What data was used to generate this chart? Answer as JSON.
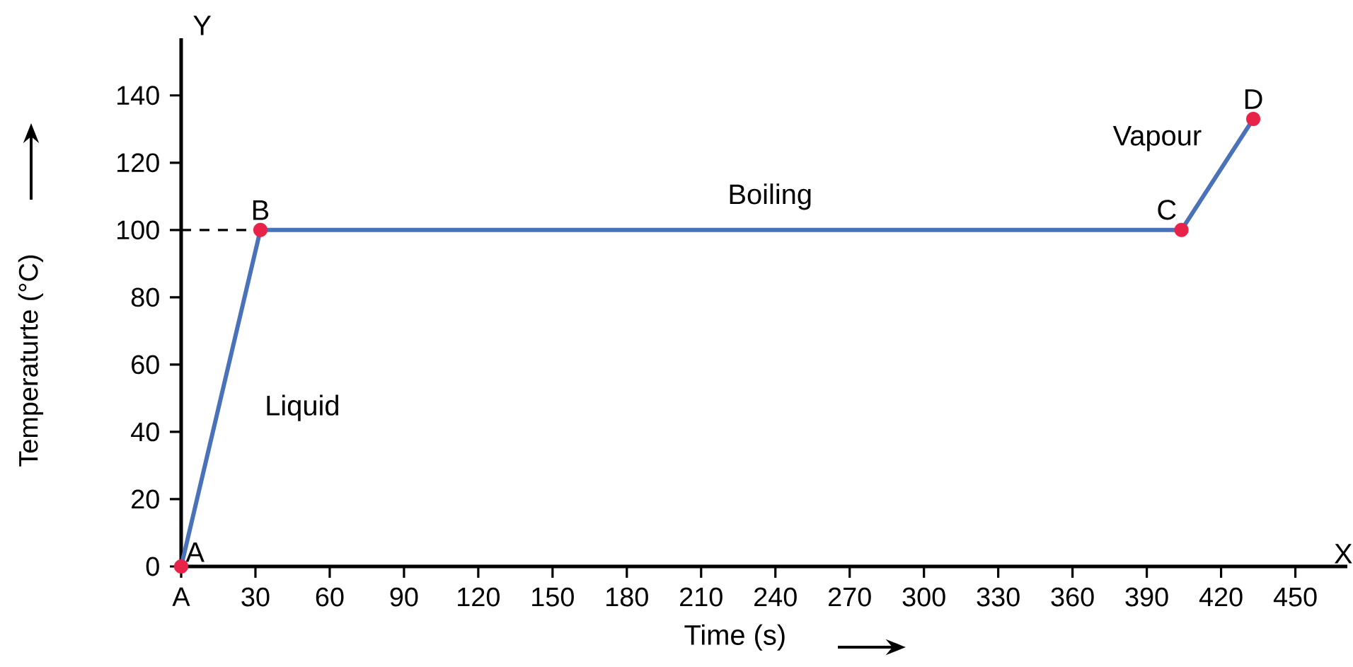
{
  "chart_data": {
    "type": "line",
    "xlabel": "Time (s)",
    "ylabel": "Temperaturte (°C)",
    "xlim": [
      0,
      471
    ],
    "ylim": [
      0,
      157
    ],
    "xticks": [
      {
        "value": 0,
        "label": "A"
      },
      30,
      60,
      90,
      120,
      150,
      180,
      210,
      240,
      270,
      300,
      330,
      360,
      390,
      420,
      450
    ],
    "yticks": [
      0,
      20,
      40,
      60,
      80,
      100,
      120,
      140
    ],
    "series": [
      {
        "color": "#4a72b8",
        "x": [
          0,
          32,
          404,
          433
        ],
        "values": [
          0,
          100,
          100,
          133
        ]
      },
      {
        "type": "line",
        "color": "#000000",
        "line_style": "dashed",
        "x": [
          0,
          32
        ],
        "values": [
          100,
          100
        ]
      },
      {
        "type": "scatter",
        "color": "#e8234a",
        "marker": "circle",
        "x": [
          0,
          32,
          404,
          433
        ],
        "values": [
          0,
          100,
          100,
          133
        ]
      }
    ],
    "annotations": [
      {
        "text": "A",
        "x": 0,
        "y": 0
      },
      {
        "text": "B",
        "x": 32,
        "y": 100
      },
      {
        "text": "C",
        "x": 404,
        "y": 100
      },
      {
        "text": "D",
        "x": 433,
        "y": 133
      },
      "Liquid",
      "Boiling",
      "Vapour",
      "X",
      "Y"
    ],
    "grid": false
  }
}
